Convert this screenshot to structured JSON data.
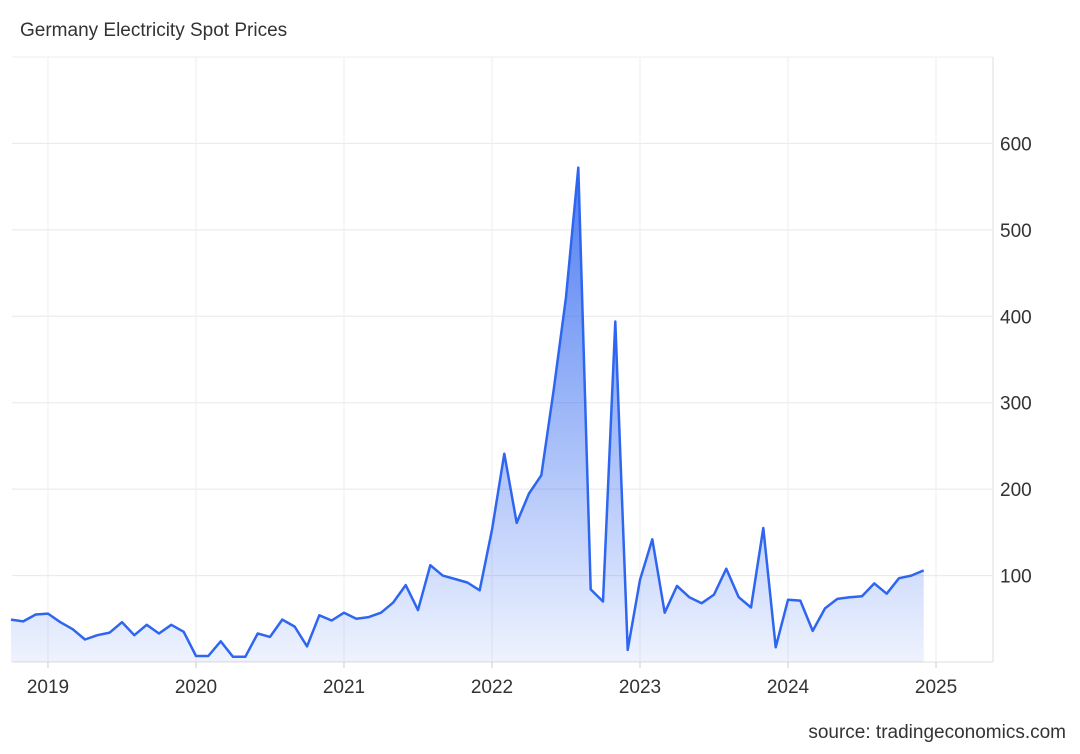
{
  "chart_data": {
    "type": "area",
    "title": "Germany Electricity Spot Prices",
    "source": "source: tradingeconomics.com",
    "x": [
      2018.75,
      2018.833,
      2018.917,
      2019,
      2019.083,
      2019.167,
      2019.25,
      2019.333,
      2019.417,
      2019.5,
      2019.583,
      2019.667,
      2019.75,
      2019.833,
      2019.917,
      2020,
      2020.083,
      2020.167,
      2020.25,
      2020.333,
      2020.417,
      2020.5,
      2020.583,
      2020.667,
      2020.75,
      2020.833,
      2020.917,
      2021,
      2021.083,
      2021.167,
      2021.25,
      2021.333,
      2021.417,
      2021.5,
      2021.583,
      2021.667,
      2021.75,
      2021.833,
      2021.917,
      2022,
      2022.083,
      2022.167,
      2022.25,
      2022.333,
      2022.417,
      2022.5,
      2022.583,
      2022.667,
      2022.75,
      2022.833,
      2022.917,
      2023,
      2023.083,
      2023.167,
      2023.25,
      2023.333,
      2023.417,
      2023.5,
      2023.583,
      2023.667,
      2023.75,
      2023.833,
      2023.917,
      2024,
      2024.083,
      2024.167,
      2024.25,
      2024.333,
      2024.417,
      2024.5,
      2024.583,
      2024.667,
      2024.75,
      2024.833,
      2024.917
    ],
    "values": [
      49,
      47,
      55,
      56,
      46,
      38,
      26,
      31,
      34,
      46,
      31,
      43,
      33,
      43,
      35,
      7,
      7,
      24,
      6,
      6,
      33,
      29,
      49,
      41,
      18,
      54,
      48,
      57,
      50,
      52,
      57,
      69,
      89,
      60,
      112,
      100,
      96,
      92,
      83,
      153,
      241,
      161,
      195,
      216,
      315,
      422,
      572,
      84,
      70,
      394,
      14,
      95,
      142,
      57,
      88,
      75,
      68,
      78,
      108,
      75,
      63,
      155,
      17,
      72,
      71,
      36,
      62,
      73,
      75,
      76,
      91,
      79,
      97,
      100,
      106
    ],
    "color": "#2f66f0",
    "xlim": [
      2018.757,
      2025.385
    ],
    "xticks": [
      2019,
      2020,
      2021,
      2022,
      2023,
      2024,
      2025
    ],
    "ylim": [
      0,
      700
    ],
    "yticks": [
      100,
      200,
      300,
      400,
      500,
      600
    ],
    "grid": true
  }
}
